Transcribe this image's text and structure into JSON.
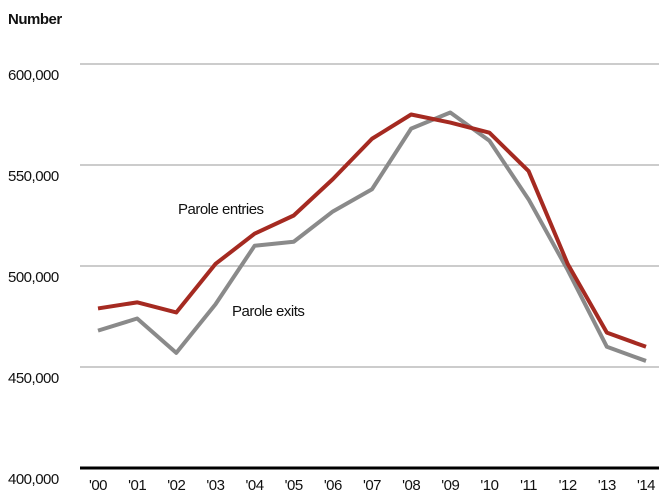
{
  "chart_data": {
    "type": "line",
    "ylabel": "Number",
    "categories": [
      "'00",
      "'01",
      "'02",
      "'03",
      "'04",
      "'05",
      "'06",
      "'07",
      "'08",
      "'09",
      "'10",
      "'11",
      "'12",
      "'13",
      "'14"
    ],
    "series": [
      {
        "name": "Parole entries",
        "color": "#a52a21",
        "values": [
          479000,
          482000,
          477000,
          501000,
          516000,
          525000,
          543000,
          563000,
          575000,
          571000,
          566000,
          547000,
          501000,
          467000,
          460000
        ]
      },
      {
        "name": "Parole exits",
        "color": "#8a8a8a",
        "values": [
          468000,
          474000,
          457000,
          481000,
          510000,
          512000,
          527000,
          538000,
          568000,
          576000,
          562000,
          533000,
          498000,
          460000,
          453000
        ]
      }
    ],
    "ylim": [
      400000,
      600000
    ],
    "yticks": [
      {
        "value": 400000,
        "label": "400,000"
      },
      {
        "value": 450000,
        "label": "450,000"
      },
      {
        "value": 500000,
        "label": "500,000"
      },
      {
        "value": 550000,
        "label": "550,000"
      },
      {
        "value": 600000,
        "label": "600,000"
      }
    ],
    "grid": true
  }
}
